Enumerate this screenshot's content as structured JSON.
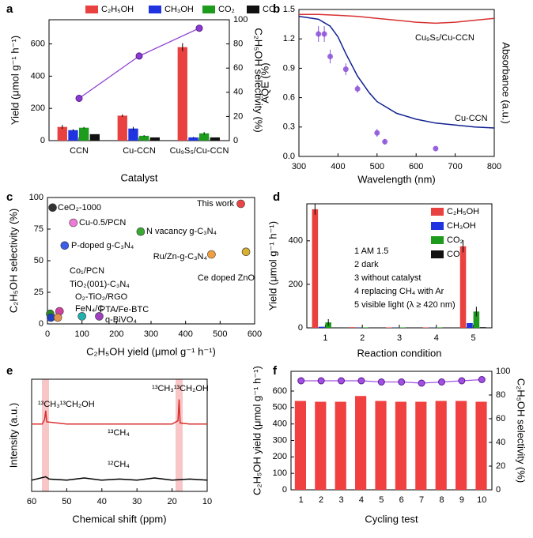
{
  "chart_data": [
    {
      "panel": "a",
      "type": "bar",
      "xlabel": "Catalyst",
      "ylabel": "Yield (μmol g⁻¹ h⁻¹)",
      "y2label": "C₂H₅OH selectivity (%)",
      "categories": [
        "CCN",
        "Cu-CCN",
        "Cu₉S₅/Cu-CCN"
      ],
      "series": [
        {
          "name": "C₂H₅OH",
          "color": "#e8413f",
          "values": [
            85,
            155,
            580
          ],
          "errors": [
            12,
            8,
            25
          ]
        },
        {
          "name": "CH₃OH",
          "color": "#1f33e0",
          "values": [
            65,
            75,
            20
          ],
          "errors": [
            6,
            10,
            3
          ]
        },
        {
          "name": "CO₂",
          "color": "#1c9b1c",
          "values": [
            80,
            30,
            45
          ],
          "errors": [
            5,
            4,
            8
          ]
        },
        {
          "name": "CO",
          "color": "#111111",
          "values": [
            40,
            20,
            20
          ]
        },
        {
          "axis": "y2",
          "color": "#8a3bd0",
          "values": [
            35,
            70,
            93
          ],
          "errors": [
            3,
            3,
            2
          ]
        }
      ],
      "ylim": [
        0,
        750
      ],
      "yticks": [
        0,
        200,
        400,
        600
      ],
      "y2lim": [
        0,
        100
      ],
      "y2ticks": [
        0,
        20,
        40,
        60,
        80,
        100
      ]
    },
    {
      "panel": "b",
      "type": "line",
      "xlabel": "Wavelength (nm)",
      "ylabel": "AQE (%)",
      "y2label": "Absorbance (a.u.)",
      "xlim": [
        300,
        800
      ],
      "xticks": [
        300,
        400,
        500,
        600,
        700,
        800
      ],
      "ylim": [
        0,
        1.5
      ],
      "yticks": [
        {
          "value": 0,
          "label": "0.0"
        },
        0.3,
        0.6,
        0.9,
        1.2,
        1.5
      ],
      "y2lim": [
        0,
        1.5
      ],
      "series": [
        {
          "mode": "scatter",
          "color": "#8a4fd8",
          "x": [
            350,
            365,
            380,
            420,
            450,
            500,
            520,
            650
          ],
          "values": [
            1.25,
            1.25,
            1.02,
            0.89,
            0.69,
            0.24,
            0.15,
            0.08
          ],
          "errors": [
            0.08,
            0.08,
            0.07,
            0.06,
            0.04,
            0.04,
            0.03,
            0.02
          ]
        },
        {
          "axis": "y2",
          "color": "#d83030",
          "x": [
            300,
            350,
            400,
            450,
            500,
            550,
            600,
            650,
            700,
            750,
            800
          ],
          "values": [
            1.45,
            1.45,
            1.44,
            1.43,
            1.41,
            1.39,
            1.37,
            1.36,
            1.37,
            1.39,
            1.41
          ]
        },
        {
          "axis": "y2",
          "color": "#102090",
          "x": [
            300,
            350,
            380,
            400,
            420,
            450,
            480,
            500,
            550,
            600,
            650,
            700,
            750,
            800
          ],
          "values": [
            1.43,
            1.4,
            1.33,
            1.22,
            1.05,
            0.82,
            0.65,
            0.56,
            0.44,
            0.38,
            0.34,
            0.32,
            0.3,
            0.29
          ]
        }
      ],
      "annotations": [
        {
          "text": "Cu₉S₅/Cu-CCN",
          "color": "#d83030"
        },
        {
          "text": "Cu-CCN",
          "color": "#102090"
        }
      ]
    },
    {
      "panel": "c",
      "type": "scatter",
      "xlabel": "C₂H₅OH yield (μmol g⁻¹ h⁻¹)",
      "ylabel": "C₂H₅OH selectivity (%)",
      "xlim": [
        0,
        600
      ],
      "xticks": [
        0,
        100,
        200,
        300,
        400,
        500,
        600
      ],
      "ylim": [
        0,
        100
      ],
      "yticks": [
        0,
        25,
        50,
        75,
        100
      ],
      "points": [
        {
          "label": "This work",
          "x": 560,
          "y": 95,
          "color": "#e84545"
        },
        {
          "label": "CeO₂-1000",
          "x": 15,
          "y": 92,
          "color": "#333333"
        },
        {
          "label": "Cu-0.5/PCN",
          "x": 75,
          "y": 80,
          "color": "#f07ad8"
        },
        {
          "label": "N vacancy g-C₃N₄",
          "x": 270,
          "y": 73,
          "color": "#3aaa35"
        },
        {
          "label": "P-doped g-C₃N₄",
          "x": 50,
          "y": 62,
          "color": "#3d5ee8"
        },
        {
          "label": "Ru/Zn-g-C₃N₄",
          "x": 475,
          "y": 55,
          "color": "#f0a040"
        },
        {
          "label": "Ce doped ZnO",
          "x": 575,
          "y": 57,
          "color": "#d8b030"
        },
        {
          "label": "Co₁/PCN",
          "x": 8,
          "y": 8,
          "color": "#2a8a2a"
        },
        {
          "label": "TiO₂(001)-C₃N₄",
          "x": 10,
          "y": 5,
          "color": "#2040c0"
        },
        {
          "label": "O₂-TiO₂/RGO",
          "x": 35,
          "y": 10,
          "color": "#d040a0"
        },
        {
          "label": "FeN₄/C",
          "x": 30,
          "y": 5,
          "color": "#e09050"
        },
        {
          "label": "PTA/Fe-BTC",
          "x": 100,
          "y": 6,
          "color": "#20b0b0"
        },
        {
          "label": "q-BiVO₄",
          "x": 150,
          "y": 6,
          "color": "#a040c0"
        }
      ]
    },
    {
      "panel": "d",
      "type": "bar",
      "xlabel": "Reaction condition",
      "ylabel": "Yield (μmol g⁻¹ h⁻¹)",
      "categories": [
        "1",
        "2",
        "3",
        "4",
        "5"
      ],
      "series": [
        {
          "name": "C₂H₅OH",
          "color": "#e8413f",
          "values": [
            545,
            3,
            2,
            2,
            375
          ],
          "errors": [
            25,
            0,
            0,
            0,
            28
          ]
        },
        {
          "name": "CH₃OH",
          "color": "#1f33e0",
          "values": [
            5,
            1,
            1,
            1,
            22
          ]
        },
        {
          "name": "CO₂",
          "color": "#1c9b1c",
          "values": [
            25,
            2,
            2,
            2,
            75
          ],
          "errors": [
            15,
            0,
            0,
            0,
            22
          ]
        },
        {
          "name": "CO",
          "color": "#111111",
          "values": [
            2,
            0,
            0,
            0,
            3
          ]
        }
      ],
      "ylim": [
        0,
        570
      ],
      "yticks": [
        0,
        200,
        400
      ],
      "notes": [
        "1 AM 1.5",
        "2 dark",
        "3 without catalyst",
        "4 replacing CH₄ with Ar",
        "5 visible light (λ ≥ 420 nm)"
      ]
    },
    {
      "panel": "e",
      "type": "line",
      "xlabel": "Chemical shift (ppm)",
      "ylabel": "Intensity (a.u.)",
      "xlim": [
        60,
        10
      ],
      "xticks": [
        60,
        50,
        40,
        30,
        20,
        10
      ],
      "ylim": [
        0,
        10
      ],
      "series": [
        {
          "color": "#d83030",
          "x": [
            60,
            57,
            56.3,
            56,
            55.7,
            50,
            40,
            30,
            20,
            18.3,
            18,
            17.7,
            15,
            10
          ],
          "values": [
            6,
            6,
            6.4,
            7.2,
            6.2,
            6,
            6,
            6,
            6,
            6.3,
            8.2,
            6.1,
            6,
            6
          ]
        },
        {
          "color": "#000000",
          "x": [
            60,
            56,
            55,
            50,
            45,
            40,
            35,
            30,
            25,
            20,
            15,
            10
          ],
          "values": [
            1,
            1.3,
            1.1,
            1,
            1.2,
            1,
            1.1,
            1,
            1.2,
            1,
            1.1,
            1
          ]
        }
      ],
      "annotations": [
        {
          "text": "¹³CH₃¹³CH₂OH",
          "color": "#000000"
        },
        {
          "text": "¹³CH₃¹³CH₂OH",
          "color": "#d83030"
        },
        {
          "text": "¹³CH₄",
          "color": "#000000"
        },
        {
          "text": "¹²CH₄",
          "color": "#000000"
        }
      ]
    },
    {
      "panel": "f",
      "type": "bar",
      "xlabel": "Cycling test",
      "ylabel": "C₂H₅OH yield (μmol g⁻¹ h⁻¹)",
      "y2label": "C₂H₅OH selectivity (%)",
      "categories": [
        "1",
        "2",
        "3",
        "4",
        "5",
        "6",
        "7",
        "8",
        "9",
        "10"
      ],
      "series": [
        {
          "color": "#f04040",
          "values": [
            540,
            535,
            535,
            570,
            540,
            535,
            535,
            540,
            540,
            535
          ]
        },
        {
          "axis": "y2",
          "color": "#a050e0",
          "values": [
            92,
            92,
            92,
            92,
            91,
            91,
            90,
            91,
            92,
            93
          ]
        }
      ],
      "ylim": [
        0,
        720
      ],
      "yticks": [
        0,
        100,
        200,
        300,
        400,
        500,
        600
      ],
      "y2lim": [
        0,
        100
      ],
      "y2ticks": [
        0,
        20,
        40,
        60,
        80,
        100
      ]
    }
  ]
}
